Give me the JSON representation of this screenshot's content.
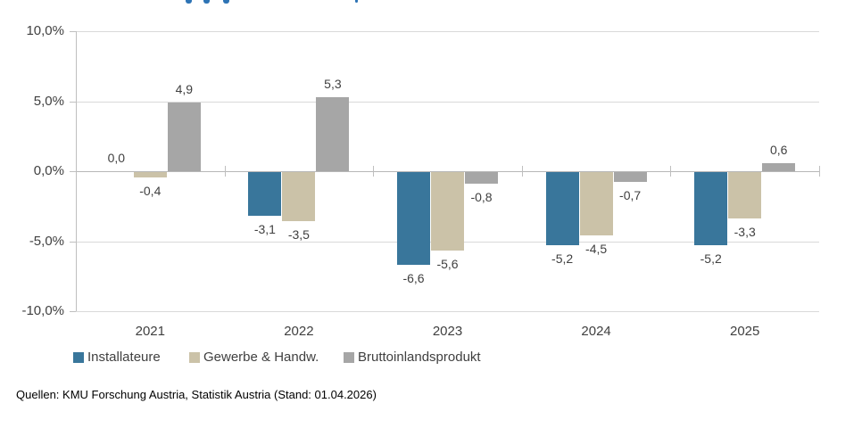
{
  "page": {
    "background": "#ffffff",
    "source_note": "Quellen: KMU Forschung Austria, Statistik Austria (Stand: 01.04.2026)"
  },
  "chart_data": {
    "type": "bar",
    "categories": [
      "2021",
      "2022",
      "2023",
      "2024",
      "2025"
    ],
    "series": [
      {
        "name": "Installateure",
        "color": "#39769B",
        "values": [
          0.0,
          -3.1,
          -6.6,
          -5.2,
          -5.2
        ],
        "labels": [
          "0,0",
          "-3,1",
          "-6,6",
          "-5,2",
          "-5,2"
        ]
      },
      {
        "name": "Gewerbe & Handw.",
        "color": "#CBC2A8",
        "values": [
          -0.4,
          -3.5,
          -5.6,
          -4.5,
          -3.3
        ],
        "labels": [
          "-0,4",
          "-3,5",
          "-5,6",
          "-4,5",
          "-3,3"
        ]
      },
      {
        "name": "Bruttoinlandsprodukt",
        "color": "#A6A6A6",
        "values": [
          4.9,
          5.3,
          -0.8,
          -0.7,
          0.6
        ],
        "labels": [
          "4,9",
          "5,3",
          "-0,8",
          "-0,7",
          "0,6"
        ]
      }
    ],
    "y_axis": {
      "tick_labels": [
        "10,0%",
        "5,0%",
        "0,0%",
        "-5,0%",
        "-10,0%"
      ],
      "tick_values": [
        10,
        5,
        0,
        -5,
        -10
      ],
      "min": -10,
      "max": 10,
      "unit": "percent"
    },
    "grid": true,
    "legend_position": "bottom",
    "legend": [
      "Installateure",
      "Gewerbe & Handw.",
      "Bruttoinlandsprodukt"
    ],
    "value_label_decimal_separator": ",",
    "colors": {
      "gridline": "#D9D9D9",
      "axis": "#BFBFBF",
      "text": "#404040",
      "clipped_title_blue": "#2E74B5"
    }
  }
}
